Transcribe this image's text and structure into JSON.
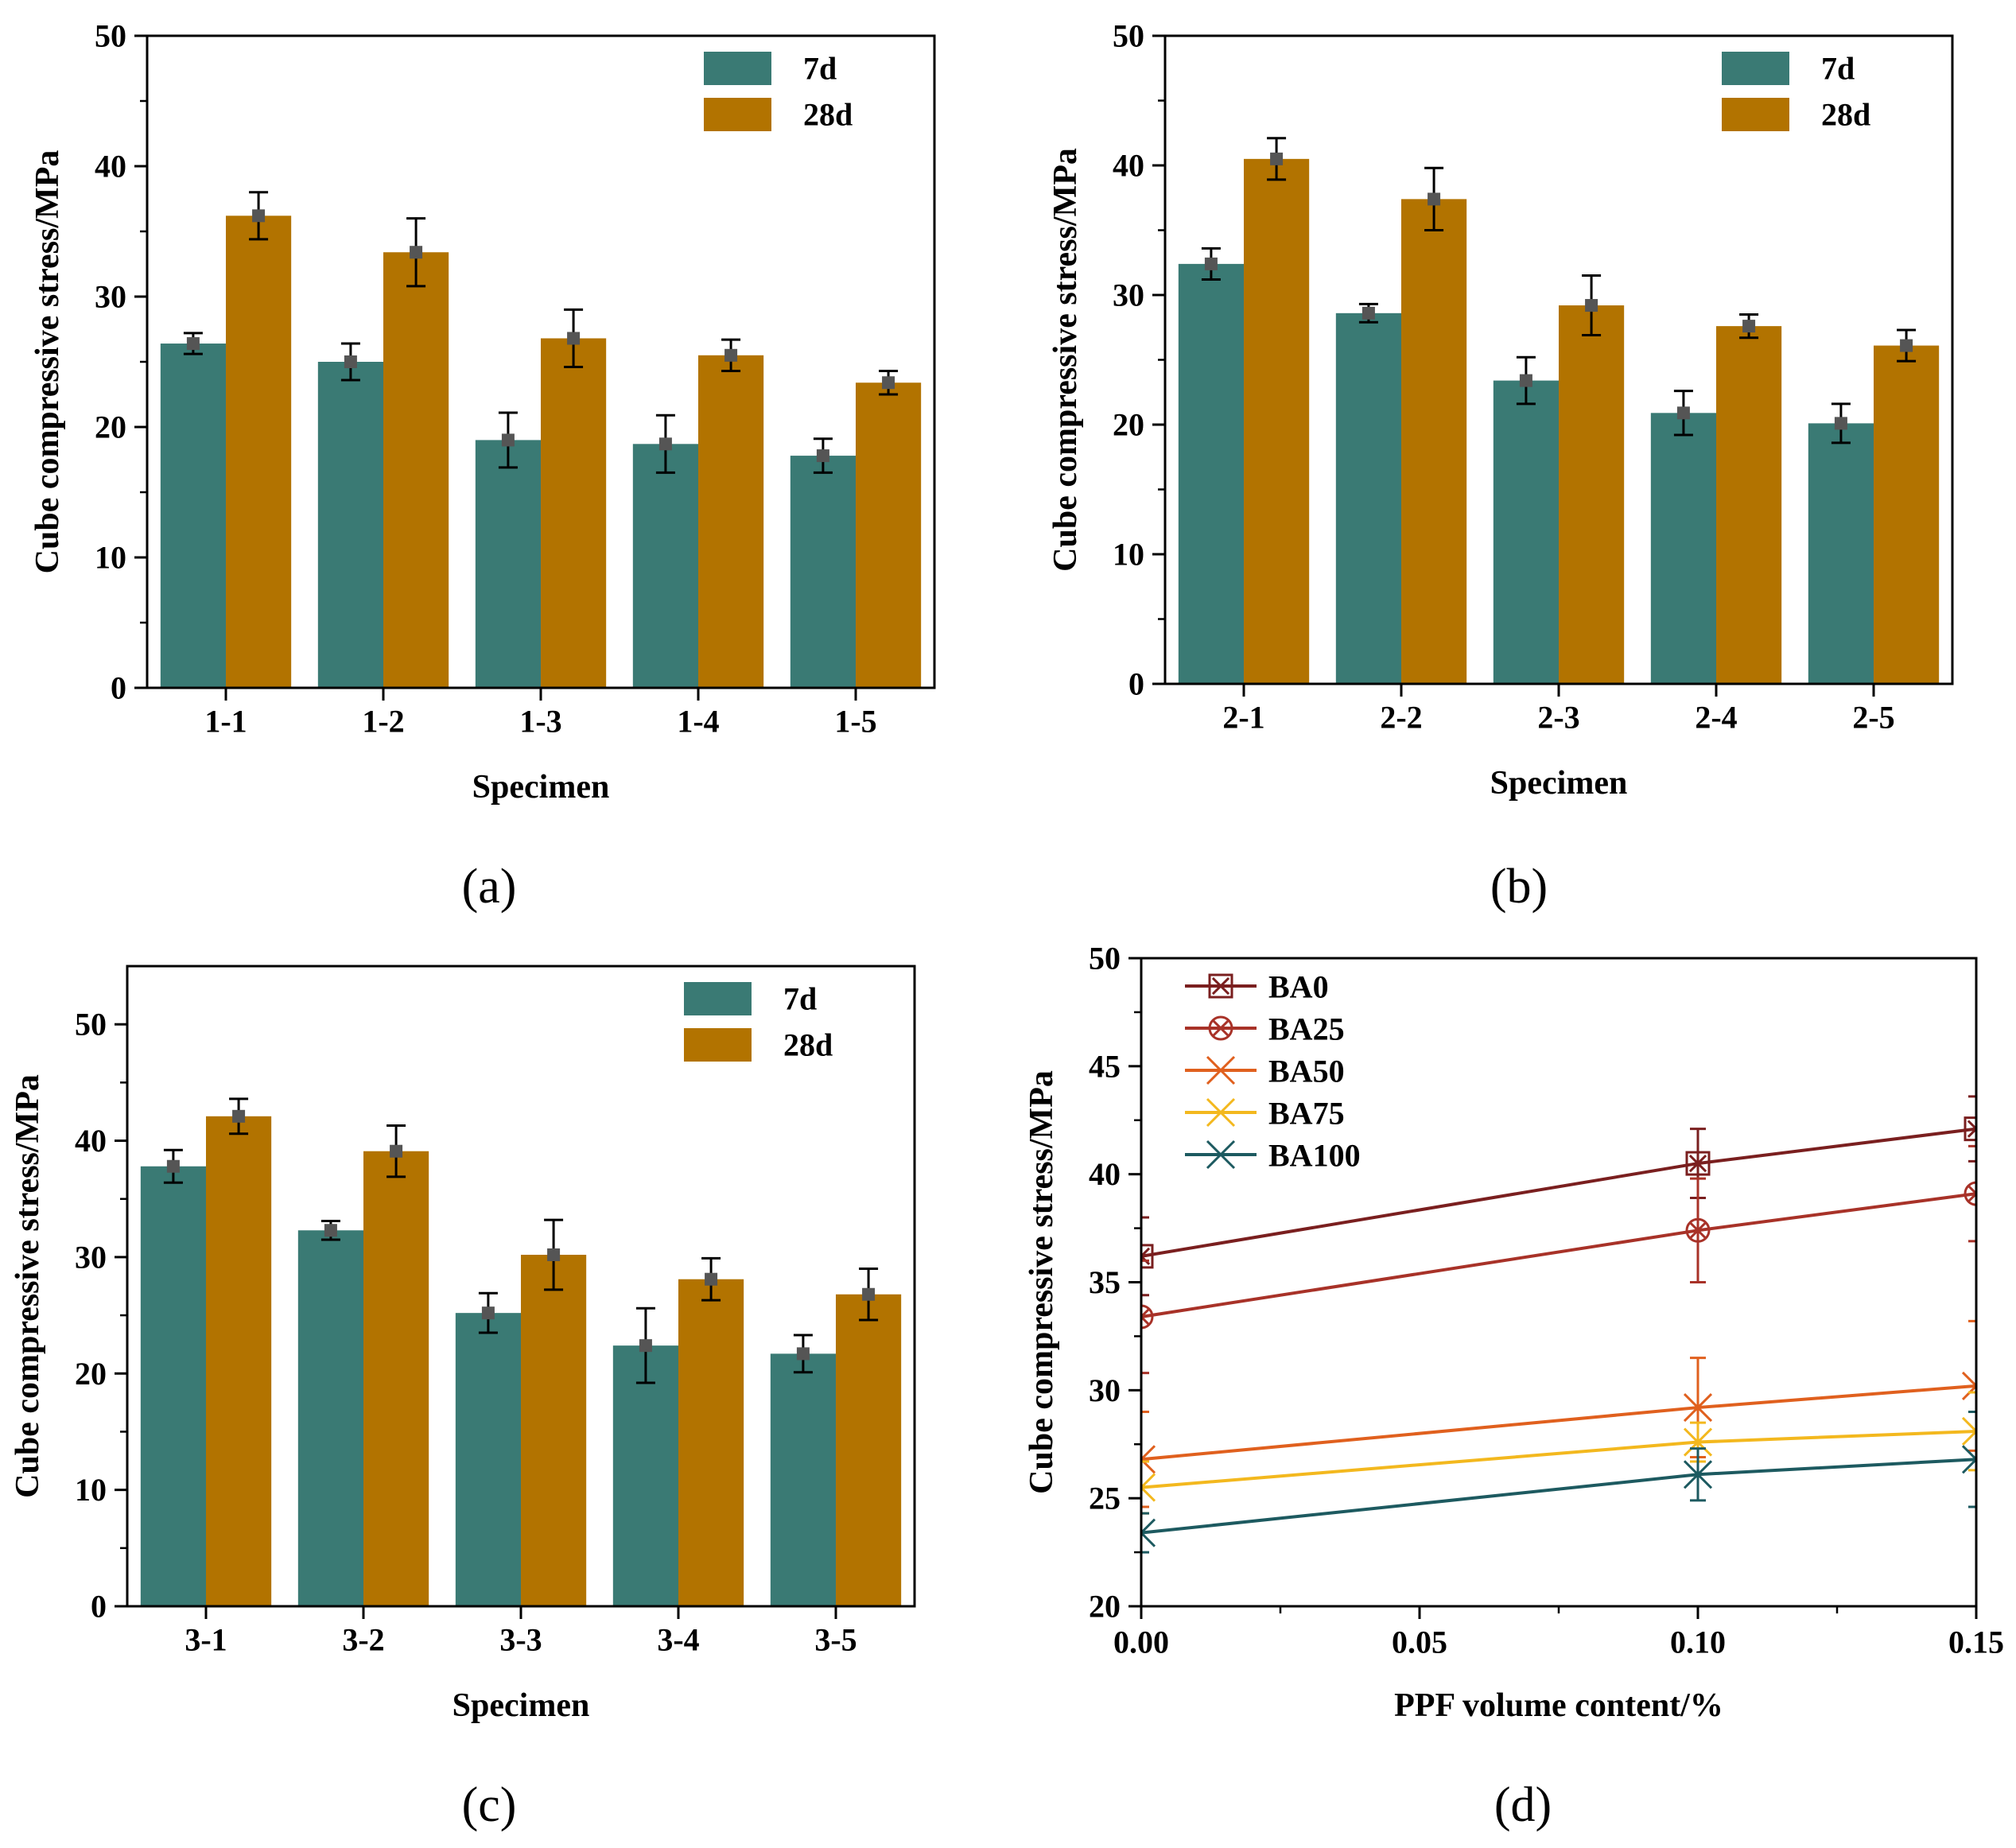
{
  "colors": {
    "series_7d": "#3a7a74",
    "series_28d": "#b27300",
    "error_bar": "#000000",
    "mean_marker": "#555555",
    "BA0": "#7a1f1f",
    "BA25": "#a83228",
    "BA50": "#e0601e",
    "BA75": "#f3b81e",
    "BA100": "#1d5a60"
  },
  "chart_data": [
    {
      "id": "a",
      "type": "bar",
      "panel_label": "(a)",
      "xlabel": "Specimen",
      "ylabel": "Cube compressive stress/MPa",
      "ylim": [
        0,
        50
      ],
      "yticks": [
        "0",
        "10",
        "20",
        "30",
        "40",
        "50"
      ],
      "categories": [
        "1-1",
        "1-2",
        "1-3",
        "1-4",
        "1-5"
      ],
      "legend": {
        "position": "top-right"
      },
      "series": [
        {
          "name": "7d",
          "values": [
            26.4,
            25.0,
            19.0,
            18.7,
            17.8
          ],
          "errors": [
            0.8,
            1.4,
            2.1,
            2.2,
            1.3
          ]
        },
        {
          "name": "28d",
          "values": [
            36.2,
            33.4,
            26.8,
            25.5,
            23.4
          ],
          "errors": [
            1.8,
            2.6,
            2.2,
            1.2,
            0.9
          ]
        }
      ]
    },
    {
      "id": "b",
      "type": "bar",
      "panel_label": "(b)",
      "xlabel": "Specimen",
      "ylabel": "Cube compressive stress/MPa",
      "ylim": [
        0,
        50
      ],
      "yticks": [
        "0",
        "10",
        "20",
        "30",
        "40",
        "50"
      ],
      "categories": [
        "2-1",
        "2-2",
        "2-3",
        "2-4",
        "2-5"
      ],
      "legend": {
        "position": "top-right"
      },
      "series": [
        {
          "name": "7d",
          "values": [
            32.4,
            28.6,
            23.4,
            20.9,
            20.1
          ],
          "errors": [
            1.2,
            0.7,
            1.8,
            1.7,
            1.5
          ]
        },
        {
          "name": "28d",
          "values": [
            40.5,
            37.4,
            29.2,
            27.6,
            26.1
          ],
          "errors": [
            1.6,
            2.4,
            2.3,
            0.9,
            1.2
          ]
        }
      ]
    },
    {
      "id": "c",
      "type": "bar",
      "panel_label": "(c)",
      "xlabel": "Specimen",
      "ylabel": "Cube compressive stress/MPa",
      "ylim": [
        0,
        55
      ],
      "yticks": [
        "0",
        "10",
        "20",
        "30",
        "40",
        "50"
      ],
      "categories": [
        "3-1",
        "3-2",
        "3-3",
        "3-4",
        "3-5"
      ],
      "legend": {
        "position": "top-right"
      },
      "series": [
        {
          "name": "7d",
          "values": [
            37.8,
            32.3,
            25.2,
            22.4,
            21.7
          ],
          "errors": [
            1.4,
            0.8,
            1.7,
            3.2,
            1.6
          ]
        },
        {
          "name": "28d",
          "values": [
            42.1,
            39.1,
            30.2,
            28.1,
            26.8
          ],
          "errors": [
            1.5,
            2.2,
            3.0,
            1.8,
            2.2
          ]
        }
      ]
    },
    {
      "id": "d",
      "type": "line",
      "panel_label": "(d)",
      "xlabel": "PPF volume content/%",
      "ylabel": "Cube compressive stress/MPa",
      "xlim": [
        0,
        0.15
      ],
      "ylim": [
        20,
        50
      ],
      "xticks": [
        "0.00",
        "0.05",
        "0.10",
        "0.15"
      ],
      "yticks": [
        "20",
        "25",
        "30",
        "35",
        "40",
        "45",
        "50"
      ],
      "x": [
        0,
        0.1,
        0.15
      ],
      "legend": {
        "position": "top-left"
      },
      "series": [
        {
          "name": "BA0",
          "marker": "square-x",
          "values": [
            36.2,
            40.5,
            42.1
          ],
          "errors": [
            1.8,
            1.6,
            1.5
          ]
        },
        {
          "name": "BA25",
          "marker": "circle-x",
          "values": [
            33.4,
            37.4,
            39.1
          ],
          "errors": [
            2.6,
            2.4,
            2.2
          ]
        },
        {
          "name": "BA50",
          "marker": "x",
          "values": [
            26.8,
            29.2,
            30.2
          ],
          "errors": [
            2.2,
            2.3,
            3.0
          ]
        },
        {
          "name": "BA75",
          "marker": "x",
          "values": [
            25.5,
            27.6,
            28.1
          ],
          "errors": [
            1.2,
            0.9,
            1.8
          ]
        },
        {
          "name": "BA100",
          "marker": "x",
          "values": [
            23.4,
            26.1,
            26.8
          ],
          "errors": [
            0.9,
            1.2,
            2.2
          ]
        }
      ]
    }
  ]
}
